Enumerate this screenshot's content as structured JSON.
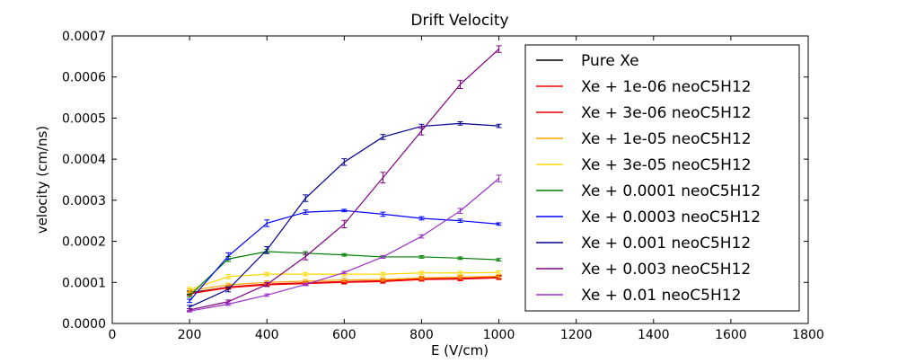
{
  "chart_data": {
    "type": "line",
    "title": "Drift Velocity",
    "xlabel": "E (V/cm)",
    "ylabel": "velocity (cm/ns)",
    "xlim": [
      0,
      1800
    ],
    "ylim": [
      0,
      0.0007
    ],
    "xticks": [
      0,
      200,
      400,
      600,
      800,
      1000,
      1200,
      1400,
      1600,
      1800
    ],
    "yticks": [
      0,
      0.0001,
      0.0002,
      0.0003,
      0.0004,
      0.0005,
      0.0006,
      0.0007
    ],
    "ytick_labels": [
      "0.0000",
      "0.0001",
      "0.0002",
      "0.0003",
      "0.0004",
      "0.0005",
      "0.0006",
      "0.0007"
    ],
    "grid": false,
    "legend_position": "top-right",
    "x": [
      200,
      300,
      400,
      500,
      600,
      700,
      800,
      900,
      1000
    ],
    "series": [
      {
        "name": "Pure Xe",
        "color": "#000000",
        "values": [
          7.5e-05,
          8.8e-05,
          9.5e-05,
          9.8e-05,
          0.000101,
          0.000103,
          0.000108,
          0.000109,
          0.000112
        ],
        "errors": [
          4e-06,
          4e-06,
          4e-06,
          4e-06,
          4e-06,
          4e-06,
          4e-06,
          4e-06,
          4e-06
        ]
      },
      {
        "name": "Xe + 1e-06 neoC5H12",
        "color": "#ff0000",
        "values": [
          7.2e-05,
          8.7e-05,
          9.4e-05,
          9.7e-05,
          0.0001,
          0.000102,
          0.000107,
          0.000108,
          0.000111
        ],
        "errors": [
          4e-06,
          4e-06,
          4e-06,
          4e-06,
          4e-06,
          4e-06,
          4e-06,
          4e-06,
          4e-06
        ]
      },
      {
        "name": "Xe + 3e-06 neoC5H12",
        "color": "#e00000",
        "values": [
          7.3e-05,
          8.9e-05,
          9.6e-05,
          9.9e-05,
          0.000102,
          0.000104,
          0.000109,
          0.00011,
          0.000113
        ],
        "errors": [
          4e-06,
          4e-06,
          4e-06,
          4e-06,
          4e-06,
          4e-06,
          4e-06,
          4e-06,
          4e-06
        ]
      },
      {
        "name": "Xe + 1e-05 neoC5H12",
        "color": "#ffa500",
        "values": [
          8e-05,
          9.4e-05,
          0.0001,
          0.000103,
          0.000106,
          0.000107,
          0.000111,
          0.000113,
          0.000115
        ],
        "errors": [
          4e-06,
          4e-06,
          4e-06,
          4e-06,
          4e-06,
          4e-06,
          4e-06,
          4e-06,
          4e-06
        ]
      },
      {
        "name": "Xe + 3e-05 neoC5H12",
        "color": "#ffd700",
        "values": [
          8.2e-05,
          0.000114,
          0.00012,
          0.00012,
          0.00012,
          0.00012,
          0.000123,
          0.000123,
          0.000124
        ],
        "errors": [
          6e-06,
          5e-06,
          4e-06,
          4e-06,
          4e-06,
          4e-06,
          4e-06,
          4e-06,
          4e-06
        ]
      },
      {
        "name": "Xe + 0.0001 neoC5H12",
        "color": "#008000",
        "values": [
          6.8e-05,
          0.000157,
          0.000175,
          0.000171,
          0.000167,
          0.000162,
          0.000162,
          0.000159,
          0.000155
        ],
        "errors": [
          4e-06,
          6e-06,
          5e-06,
          4e-06,
          3e-06,
          3e-06,
          3e-06,
          3e-06,
          3e-06
        ]
      },
      {
        "name": "Xe + 0.0003 neoC5H12",
        "color": "#0000ff",
        "values": [
          5.5e-05,
          0.000164,
          0.000244,
          0.000271,
          0.000275,
          0.000266,
          0.000256,
          0.00025,
          0.000242
        ],
        "errors": [
          4e-06,
          8e-06,
          8e-06,
          5e-06,
          3e-06,
          5e-06,
          4e-06,
          4e-06,
          3e-06
        ]
      },
      {
        "name": "Xe + 0.001 neoC5H12",
        "color": "#00008b",
        "values": [
          4e-05,
          8.3e-05,
          0.000179,
          0.000305,
          0.000393,
          0.000454,
          0.00048,
          0.000487,
          0.000481
        ],
        "errors": [
          4e-06,
          6e-06,
          8e-06,
          8e-06,
          8e-06,
          6e-06,
          5e-06,
          4e-06,
          4e-06
        ]
      },
      {
        "name": "Xe + 0.003 neoC5H12",
        "color": "#800080",
        "values": [
          3.3e-05,
          5.3e-05,
          9.5e-05,
          0.000163,
          0.000242,
          0.000355,
          0.000469,
          0.000582,
          0.000668
        ],
        "errors": [
          3e-06,
          4e-06,
          5e-06,
          8e-06,
          9e-06,
          1.3e-05,
          1e-05,
          1e-05,
          8e-06
        ]
      },
      {
        "name": "Xe + 0.01 neoC5H12",
        "color": "#9932cc",
        "values": [
          3e-05,
          4.7e-05,
          6.9e-05,
          9.5e-05,
          0.000124,
          0.000162,
          0.000212,
          0.000274,
          0.000353
        ],
        "errors": [
          2e-06,
          3e-06,
          3e-06,
          3e-06,
          3e-06,
          3e-06,
          4e-06,
          6e-06,
          8e-06
        ]
      }
    ]
  }
}
